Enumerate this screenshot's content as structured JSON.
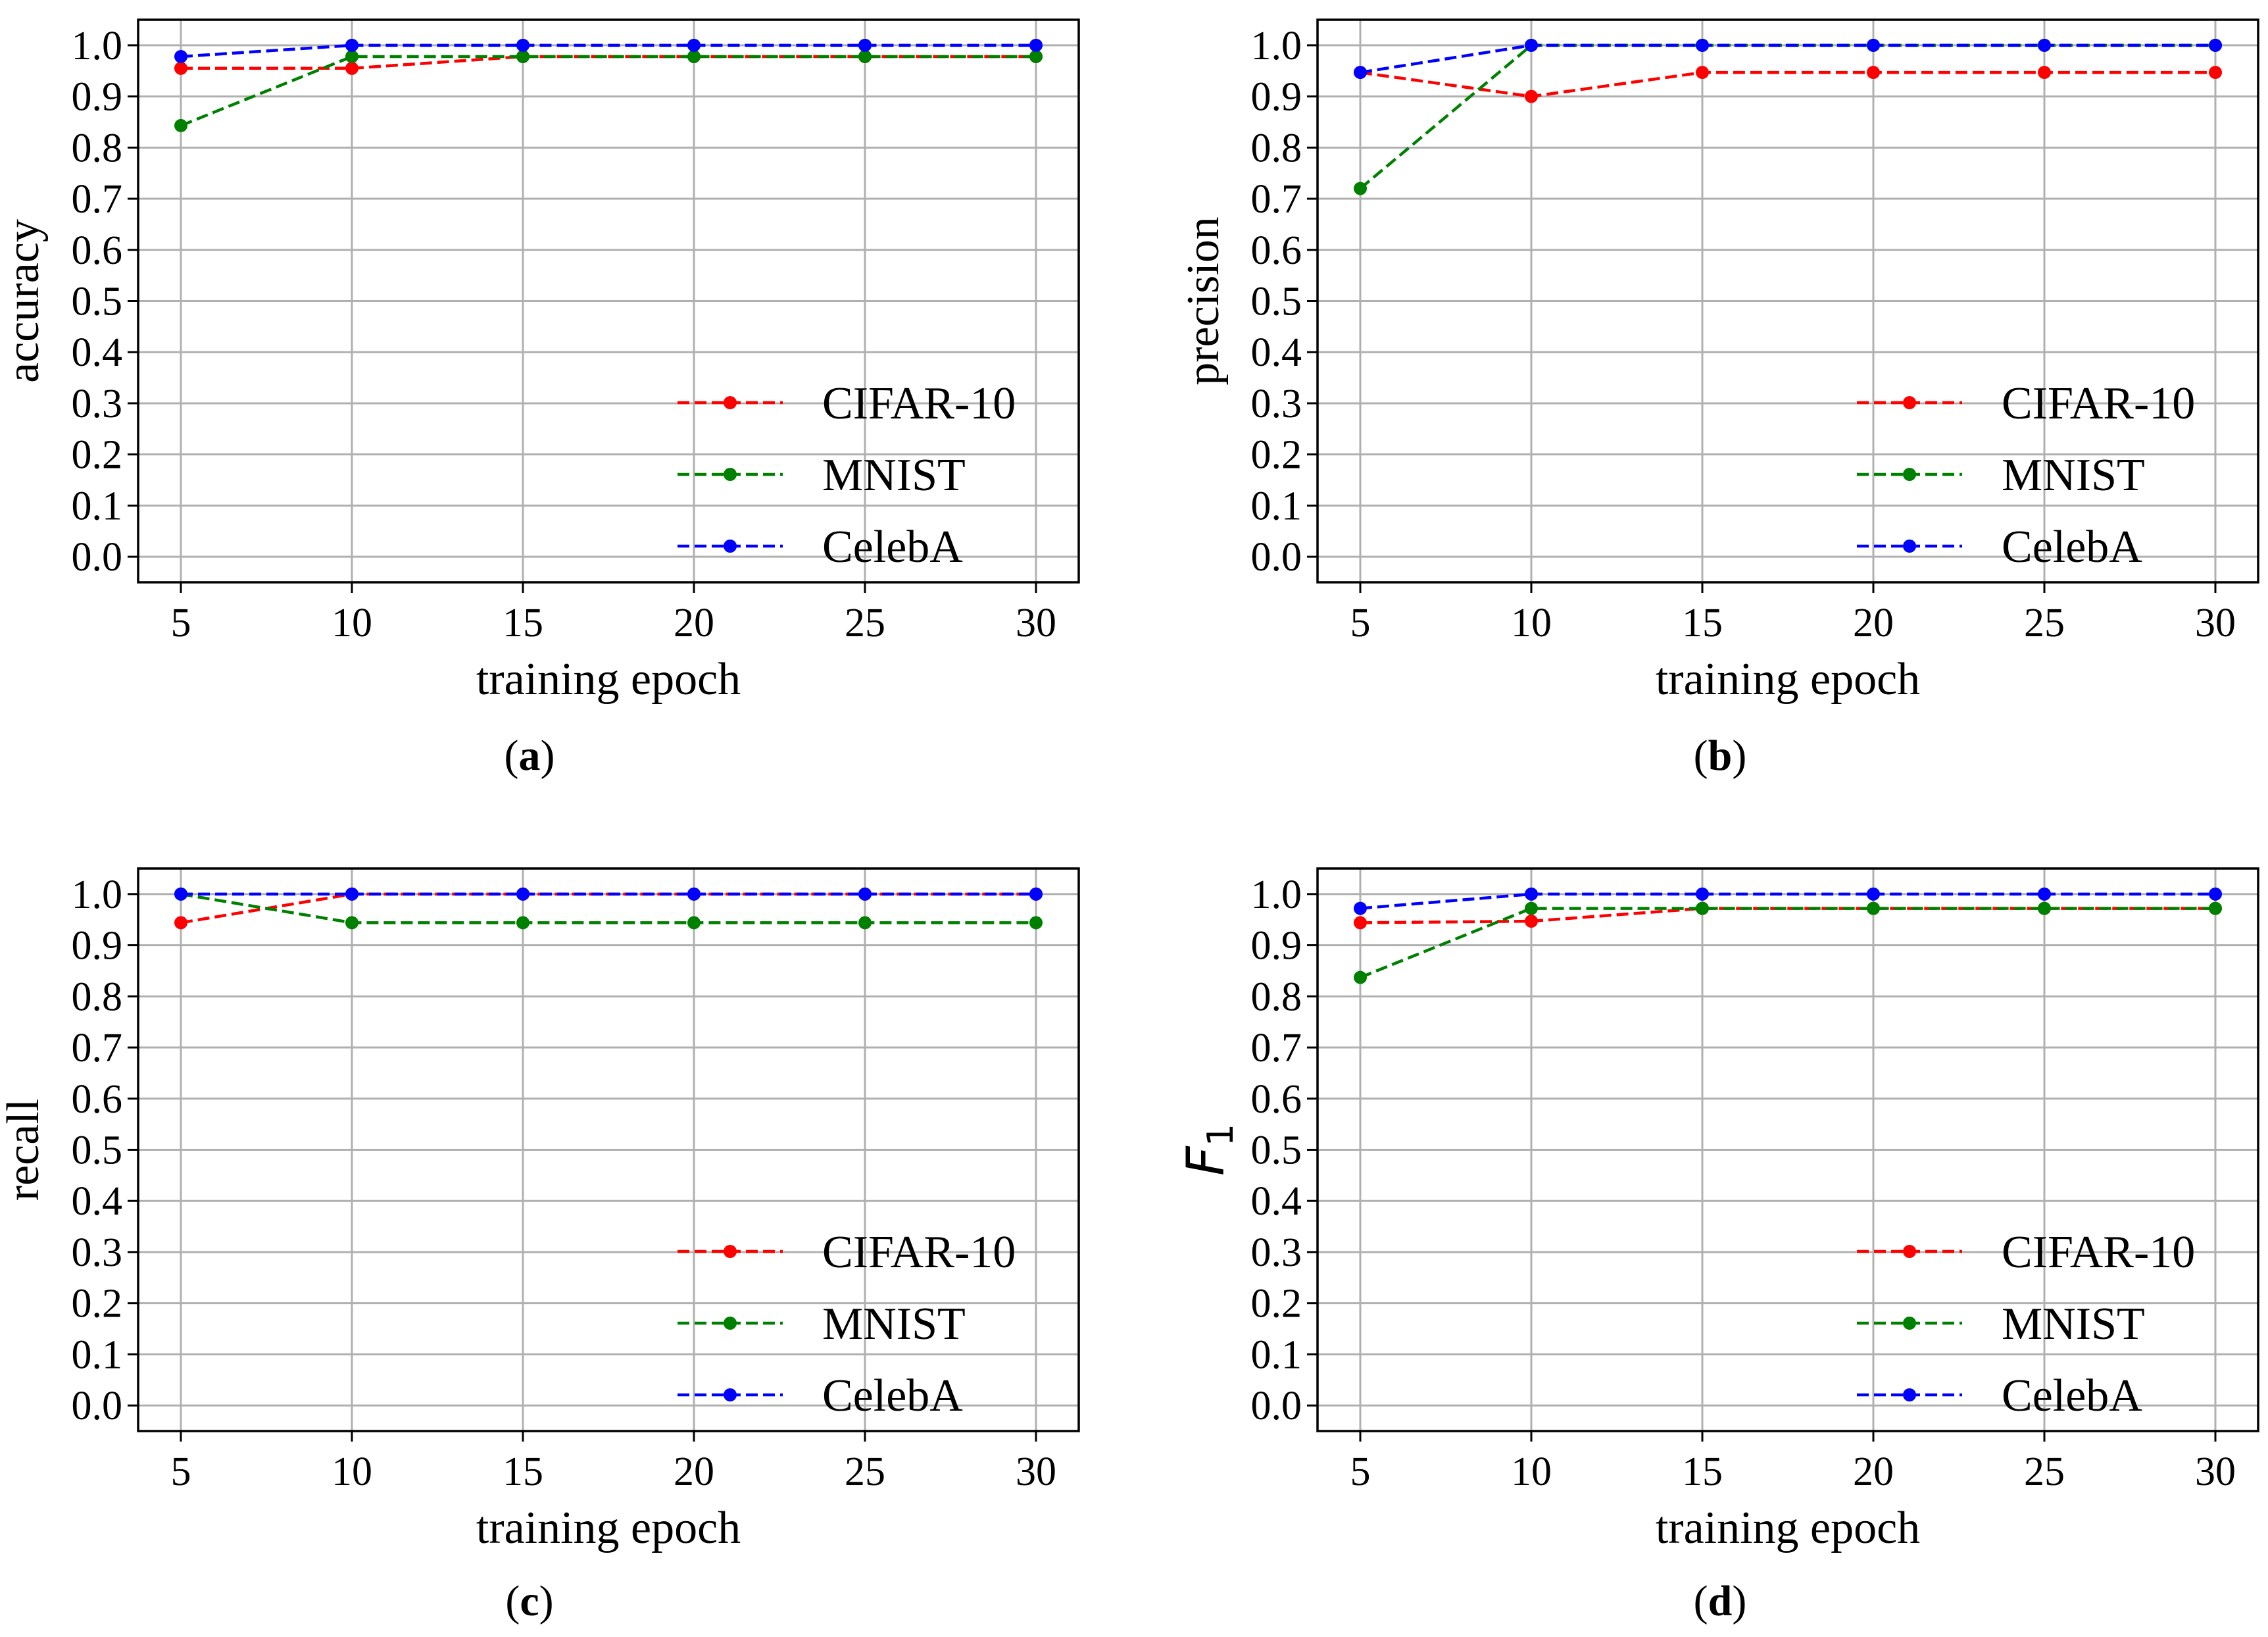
{
  "chart_data": [
    {
      "type": "line",
      "panel": "a",
      "caption_letter": "a",
      "x": [
        5,
        10,
        15,
        20,
        25,
        30
      ],
      "xticks": [
        "5",
        "10",
        "15",
        "20",
        "25",
        "30"
      ],
      "yticks": [
        "0.0",
        "0.1",
        "0.2",
        "0.3",
        "0.4",
        "0.5",
        "0.6",
        "0.7",
        "0.8",
        "0.9",
        "1.0"
      ],
      "xlabel": "training epoch",
      "ylabel": "accuracy",
      "xlim": [
        3.75,
        31.25
      ],
      "ylim": [
        -0.05,
        1.05
      ],
      "grid": true,
      "legend_position": "lower-right",
      "series": [
        {
          "name": "CIFAR-10",
          "color": "#ff0000",
          "values": [
            0.955,
            0.955,
            0.978,
            0.978,
            0.978,
            0.978
          ]
        },
        {
          "name": "MNIST",
          "color": "#008000",
          "values": [
            0.843,
            0.978,
            0.978,
            0.978,
            0.978,
            0.978
          ]
        },
        {
          "name": "CelebA",
          "color": "#0000ff",
          "values": [
            0.978,
            1.0,
            1.0,
            1.0,
            1.0,
            1.0
          ]
        }
      ]
    },
    {
      "type": "line",
      "panel": "b",
      "caption_letter": "b",
      "x": [
        5,
        10,
        15,
        20,
        25,
        30
      ],
      "xticks": [
        "5",
        "10",
        "15",
        "20",
        "25",
        "30"
      ],
      "yticks": [
        "0.0",
        "0.1",
        "0.2",
        "0.3",
        "0.4",
        "0.5",
        "0.6",
        "0.7",
        "0.8",
        "0.9",
        "1.0"
      ],
      "xlabel": "training epoch",
      "ylabel": "precision",
      "xlim": [
        3.75,
        31.25
      ],
      "ylim": [
        -0.05,
        1.05
      ],
      "grid": true,
      "legend_position": "lower-right",
      "series": [
        {
          "name": "CIFAR-10",
          "color": "#ff0000",
          "values": [
            0.947,
            0.9,
            0.947,
            0.947,
            0.947,
            0.947
          ]
        },
        {
          "name": "MNIST",
          "color": "#008000",
          "values": [
            0.72,
            1.0,
            1.0,
            1.0,
            1.0,
            1.0
          ]
        },
        {
          "name": "CelebA",
          "color": "#0000ff",
          "values": [
            0.947,
            1.0,
            1.0,
            1.0,
            1.0,
            1.0
          ]
        }
      ]
    },
    {
      "type": "line",
      "panel": "c",
      "caption_letter": "c",
      "x": [
        5,
        10,
        15,
        20,
        25,
        30
      ],
      "xticks": [
        "5",
        "10",
        "15",
        "20",
        "25",
        "30"
      ],
      "yticks": [
        "0.0",
        "0.1",
        "0.2",
        "0.3",
        "0.4",
        "0.5",
        "0.6",
        "0.7",
        "0.8",
        "0.9",
        "1.0"
      ],
      "xlabel": "training epoch",
      "ylabel": "recall",
      "xlim": [
        3.75,
        31.25
      ],
      "ylim": [
        -0.05,
        1.05
      ],
      "grid": true,
      "legend_position": "lower-right",
      "series": [
        {
          "name": "CIFAR-10",
          "color": "#ff0000",
          "values": [
            0.944,
            1.0,
            1.0,
            1.0,
            1.0,
            1.0
          ]
        },
        {
          "name": "MNIST",
          "color": "#008000",
          "values": [
            1.0,
            0.944,
            0.944,
            0.944,
            0.944,
            0.944
          ]
        },
        {
          "name": "CelebA",
          "color": "#0000ff",
          "values": [
            1.0,
            1.0,
            1.0,
            1.0,
            1.0,
            1.0
          ]
        }
      ]
    },
    {
      "type": "line",
      "panel": "d",
      "caption_letter": "d",
      "x": [
        5,
        10,
        15,
        20,
        25,
        30
      ],
      "xticks": [
        "5",
        "10",
        "15",
        "20",
        "25",
        "30"
      ],
      "yticks": [
        "0.0",
        "0.1",
        "0.2",
        "0.3",
        "0.4",
        "0.5",
        "0.6",
        "0.7",
        "0.8",
        "0.9",
        "1.0"
      ],
      "xlabel": "training epoch",
      "ylabel": "F",
      "ylabel_subscript": "1",
      "xlim": [
        3.75,
        31.25
      ],
      "ylim": [
        -0.05,
        1.05
      ],
      "grid": true,
      "legend_position": "lower-right",
      "series": [
        {
          "name": "CIFAR-10",
          "color": "#ff0000",
          "values": [
            0.944,
            0.947,
            0.972,
            0.972,
            0.972,
            0.972
          ]
        },
        {
          "name": "MNIST",
          "color": "#008000",
          "values": [
            0.837,
            0.972,
            0.972,
            0.972,
            0.972,
            0.972
          ]
        },
        {
          "name": "CelebA",
          "color": "#0000ff",
          "values": [
            0.972,
            1.0,
            1.0,
            1.0,
            1.0,
            1.0
          ]
        }
      ]
    }
  ]
}
